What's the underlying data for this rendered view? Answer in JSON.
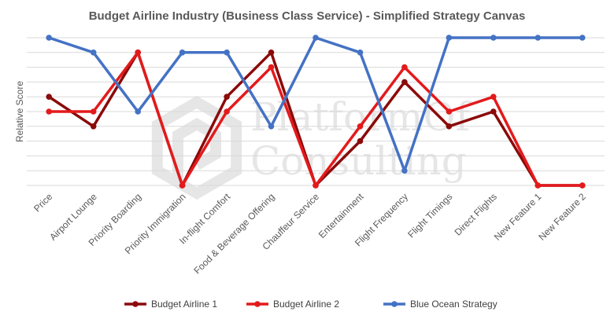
{
  "chart_data": {
    "type": "line",
    "title": "Budget Airline Industry (Business Class Service) - Simplified Strategy Canvas",
    "xlabel": "",
    "ylabel": "Relative Score",
    "ylim": [
      0,
      10
    ],
    "grid": true,
    "legend": "bottom",
    "categories": [
      "Price",
      "Airport Lounge",
      "Priority Boarding",
      "Priority Immigration",
      "In-flight Comfort",
      "Food & Beverage Offering",
      "Chauffeur Service",
      "Entertainment",
      "Flight Frequency",
      "Flight Timings",
      "Direct Flights",
      "New Feature 1",
      "New Feature 2"
    ],
    "series": [
      {
        "name": "Budget Airline 1",
        "color": "#8b0a0a",
        "values": [
          6,
          4,
          9,
          0,
          6,
          9,
          0,
          3,
          7,
          4,
          5,
          0,
          0
        ]
      },
      {
        "name": "Budget Airline 2",
        "color": "#e31a1c",
        "values": [
          5,
          5,
          9,
          0,
          5,
          8,
          0,
          4,
          8,
          5,
          6,
          0,
          0
        ]
      },
      {
        "name": "Blue Ocean Strategy",
        "color": "#4472c4",
        "values": [
          10,
          9,
          5,
          9,
          9,
          4,
          10,
          9,
          1,
          10,
          10,
          10,
          10
        ]
      }
    ]
  },
  "watermark": {
    "line1": "PlatformOf",
    "line2": "Consulting"
  }
}
